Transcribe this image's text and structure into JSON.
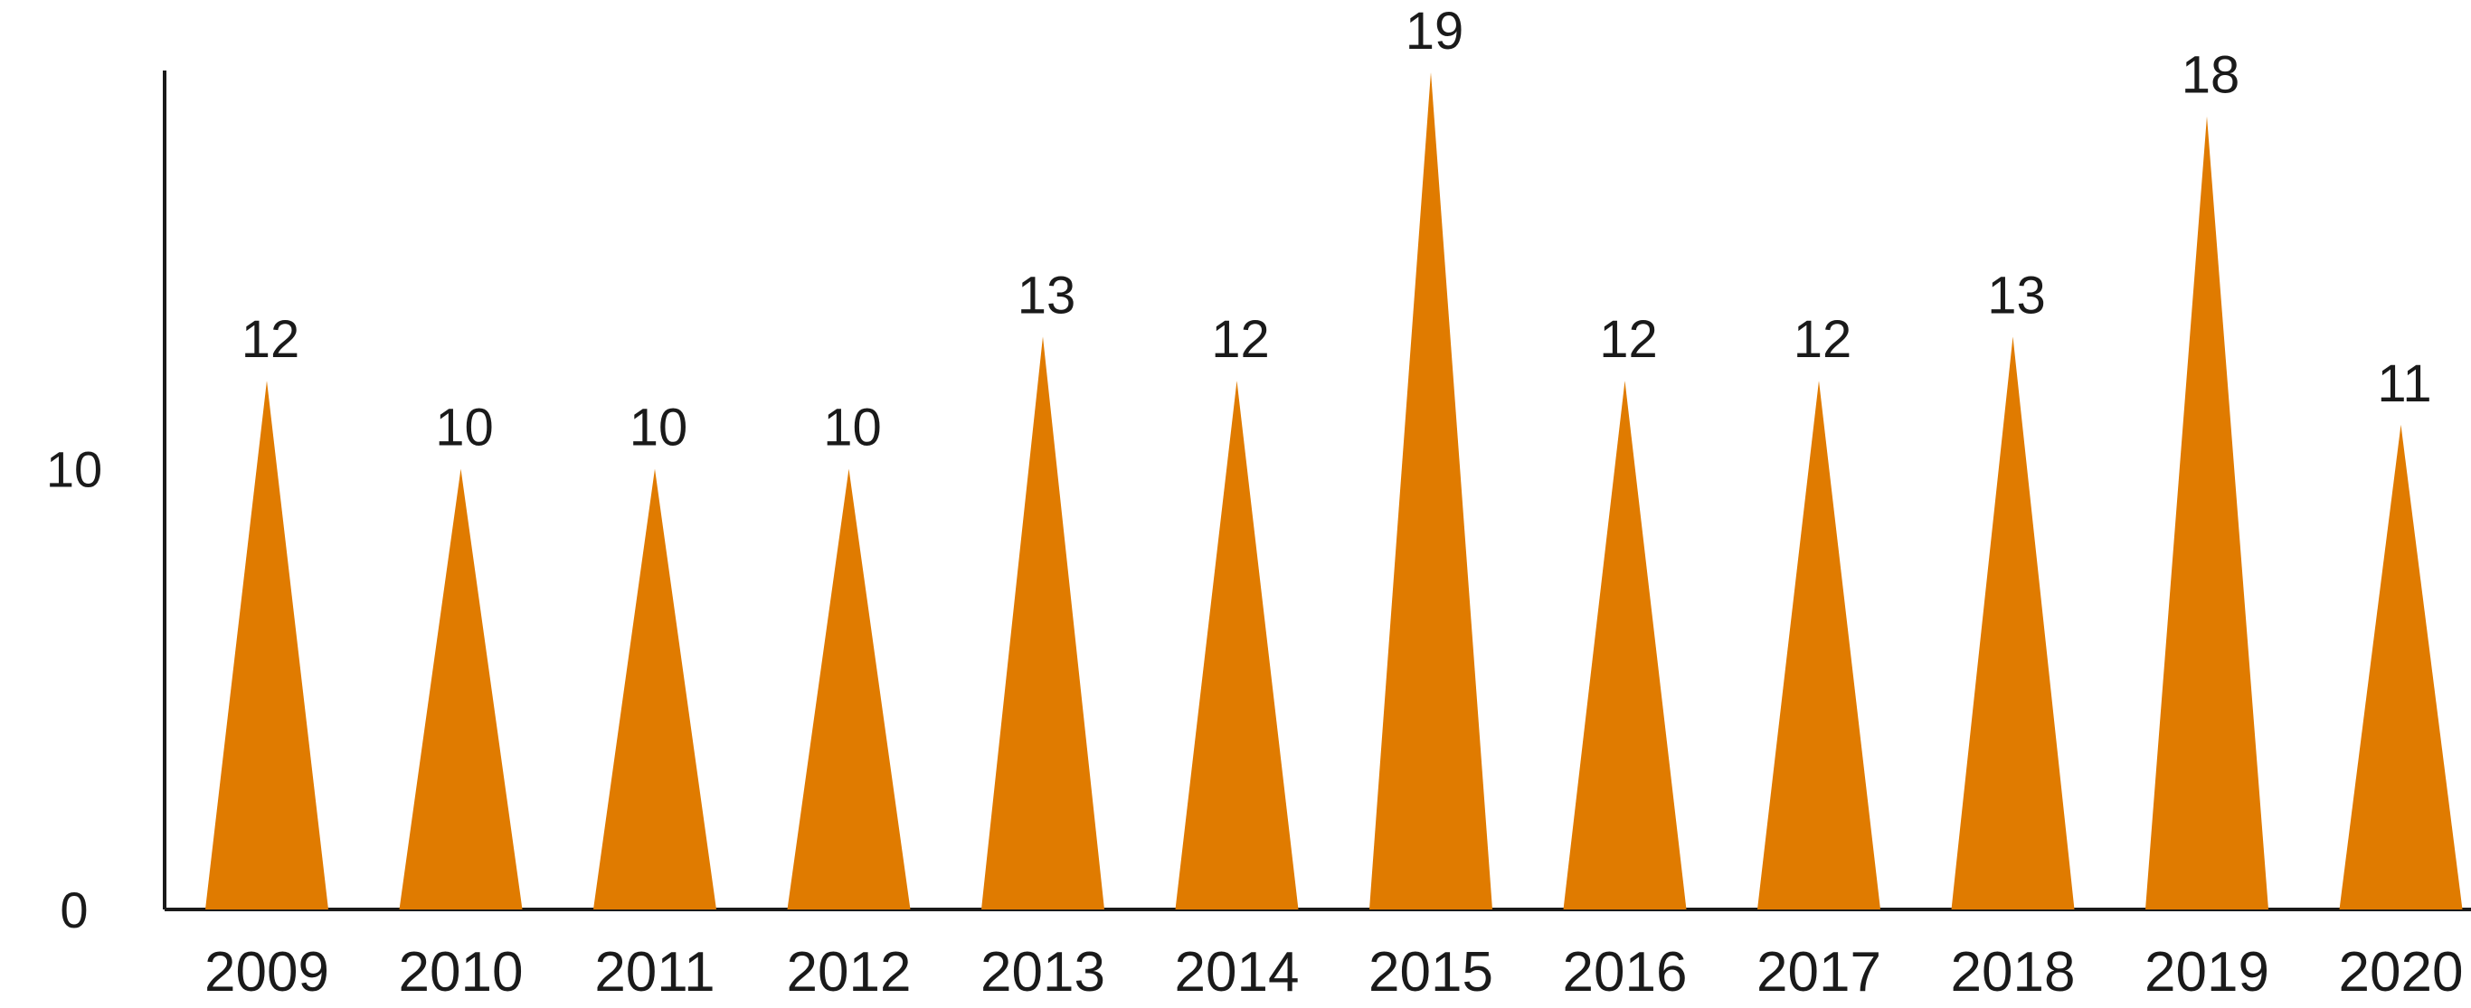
{
  "chart_data": {
    "type": "bar",
    "mark_shape": "triangle",
    "categories": [
      "2009",
      "2010",
      "2011",
      "2012",
      "2013",
      "2014",
      "2015",
      "2016",
      "2017",
      "2018",
      "2019",
      "2020"
    ],
    "values": [
      12,
      10,
      10,
      10,
      13,
      12,
      19,
      12,
      12,
      13,
      18,
      11
    ],
    "data_labels": [
      "12",
      "10",
      "10",
      "10",
      "13",
      "12",
      "19",
      "12",
      "12",
      "13",
      "18",
      "11"
    ],
    "y_ticks": [
      0,
      10
    ],
    "y_tick_labels": [
      "0",
      "10"
    ],
    "ylim": [
      0,
      19
    ],
    "grid": false,
    "legend": "none",
    "bar_color": "#E07B00",
    "axis_color": "#1a1a1a"
  }
}
